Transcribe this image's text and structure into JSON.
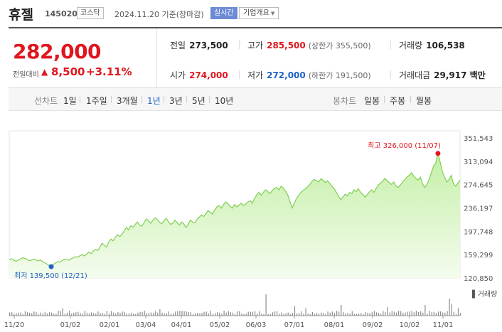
{
  "header": {
    "stock_name": "휴젤",
    "stock_code": "145020",
    "market": "코스닥",
    "as_of": "2024.11.20 기준(장마감)",
    "realtime_label": "실시간",
    "company_overview_label": "기업개요"
  },
  "quote": {
    "price": "282,000",
    "change_label": "전일대비",
    "change_value": "8,500",
    "change_pct": "+3.11%",
    "prev_close_label": "전일",
    "prev_close": "273,500",
    "high_label": "고가",
    "high": "285,500",
    "upper_limit": "(상한가 355,500)",
    "volume_label": "거래량",
    "volume": "106,538",
    "open_label": "시가",
    "open": "274,000",
    "low_label": "저가",
    "low": "272,000",
    "lower_limit": "(하한가 191,500)",
    "trade_value_label": "거래대금",
    "trade_value": "29,917 백만"
  },
  "period_bar": {
    "line_title": "선차트",
    "line_items": [
      "1일",
      "1주일",
      "3개월",
      "1년",
      "3년",
      "5년",
      "10년"
    ],
    "active_line_item": "1년",
    "candle_title": "봉차트",
    "candle_items": [
      "일봉",
      "주봉",
      "월봉"
    ]
  },
  "colors": {
    "up": "#e0161f",
    "down": "#2062c5",
    "line": "#7fcf50",
    "fill_top": "#c5efa8"
  },
  "chart_data": {
    "type": "area",
    "y_ticks": [
      "351,543",
      "313,094",
      "274,645",
      "236,197",
      "197,748",
      "159,299",
      "120,850"
    ],
    "ylim": [
      120850,
      351543
    ],
    "x_tick_labels": [
      "11/20",
      "01/02",
      "02/01",
      "03/04",
      "04/01",
      "05/02",
      "06/03",
      "07/01",
      "08/01",
      "09/02",
      "10/02",
      "11/01"
    ],
    "high_annotation": "최고 326,000 (11/07)",
    "low_annotation": "최저 139,500 (12/21)",
    "high": 326000,
    "low": 139500,
    "volume_label": "거래량",
    "series": [
      {
        "values": [
          151000,
          152500,
          150500,
          148500,
          150000,
          152000,
          154000,
          153000,
          151500,
          149500,
          150000,
          152000,
          151000,
          149000,
          150500,
          148000,
          146000,
          144000,
          141500,
          139500,
          143000,
          146000,
          148000,
          147000,
          149500,
          152000,
          151000,
          150000,
          152500,
          154000,
          156000,
          155000,
          157500,
          159500,
          157000,
          160000,
          163500,
          161000,
          165000,
          168000,
          166000,
          171000,
          178000,
          175000,
          172000,
          180000,
          185000,
          182000,
          188000,
          192000,
          189000,
          193000,
          198000,
          204000,
          200000,
          207000,
          204500,
          209000,
          213000,
          208000,
          206000,
          212000,
          218000,
          215000,
          211000,
          216000,
          220000,
          217000,
          213000,
          210000,
          215000,
          219000,
          214000,
          209000,
          211000,
          216000,
          212000,
          208000,
          213000,
          210000,
          204000,
          209000,
          216000,
          213000,
          212000,
          218000,
          221000,
          225000,
          222000,
          227000,
          232000,
          229000,
          226000,
          233000,
          238000,
          240000,
          236000,
          242000,
          246000,
          243000,
          239000,
          236000,
          242000,
          238000,
          241000,
          244000,
          240000,
          243000,
          246000,
          248000,
          244000,
          252000,
          258000,
          262000,
          257000,
          262000,
          266000,
          263000,
          260000,
          265000,
          268000,
          270000,
          266000,
          272000,
          269000,
          264000,
          258000,
          247000,
          236000,
          244000,
          252000,
          257000,
          262000,
          265000,
          268000,
          271000,
          275000,
          280000,
          283000,
          281000,
          279000,
          284000,
          282000,
          278000,
          281000,
          277000,
          272000,
          268000,
          262000,
          255000,
          250000,
          254000,
          259000,
          256000,
          262000,
          260000,
          266000,
          263000,
          268000,
          262000,
          259000,
          254000,
          258000,
          263000,
          266000,
          262000,
          268000,
          274000,
          277000,
          280000,
          285000,
          281000,
          278000,
          275000,
          279000,
          272000,
          270000,
          274000,
          279000,
          283000,
          287000,
          290000,
          294000,
          289000,
          285000,
          282000,
          287000,
          276000,
          270000,
          275000,
          283000,
          294000,
          305000,
          310000,
          326000,
          312000,
          296000,
          287000,
          279000,
          283000,
          290000,
          276000,
          272000,
          277000,
          282000
        ]
      }
    ]
  }
}
